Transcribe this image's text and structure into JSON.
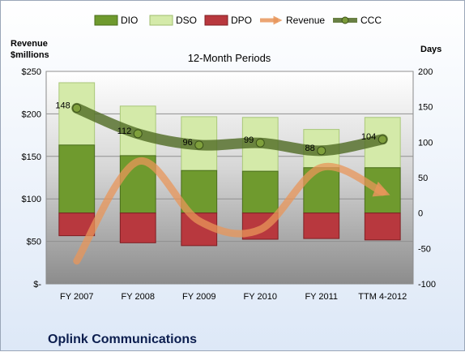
{
  "chart_data": {
    "type": "bar",
    "title": "12-Month Periods",
    "company": "Oplink Communications",
    "left_axis_title": [
      "Revenue",
      "$millions"
    ],
    "right_axis_title": "Days",
    "categories": [
      "FY 2007",
      "FY 2008",
      "FY 2009",
      "FY 2010",
      "FY 2011",
      "TTM 4-2012"
    ],
    "left_ticks": [
      "$-",
      "$50",
      "$100",
      "$150",
      "$200",
      "$250"
    ],
    "left_tick_values": [
      0,
      50,
      100,
      150,
      200,
      250
    ],
    "right_ticks": [
      "-100",
      "-50",
      "0",
      "50",
      "100",
      "150",
      "200"
    ],
    "right_tick_values": [
      -100,
      -50,
      0,
      50,
      100,
      150,
      200
    ],
    "left_ylim": [
      0,
      250
    ],
    "right_ylim": [
      -100,
      200
    ],
    "series": [
      {
        "name": "DIO",
        "axis": "right",
        "values": [
          96,
          81,
          60,
          59,
          64,
          64
        ],
        "color": "#6f9a2e"
      },
      {
        "name": "DSO",
        "axis": "right",
        "values": [
          88,
          70,
          76,
          76,
          54,
          71
        ],
        "color": "#d4eaa9"
      },
      {
        "name": "DPO",
        "axis": "right",
        "values": [
          -32,
          -42,
          -46,
          -37,
          -36,
          -38
        ],
        "color": "#b8383e"
      },
      {
        "name": "Revenue",
        "axis": "left",
        "values": [
          27,
          144,
          74,
          64,
          137,
          108
        ],
        "color": "#e8955a"
      },
      {
        "name": "CCC",
        "axis": "right",
        "values": [
          148,
          112,
          96,
          99,
          88,
          104
        ],
        "color": "#4f6a23"
      }
    ],
    "ccc_labels": [
      "148",
      "112",
      "96",
      "99",
      "88",
      "104"
    ],
    "grid": true,
    "legend_position": "top"
  }
}
